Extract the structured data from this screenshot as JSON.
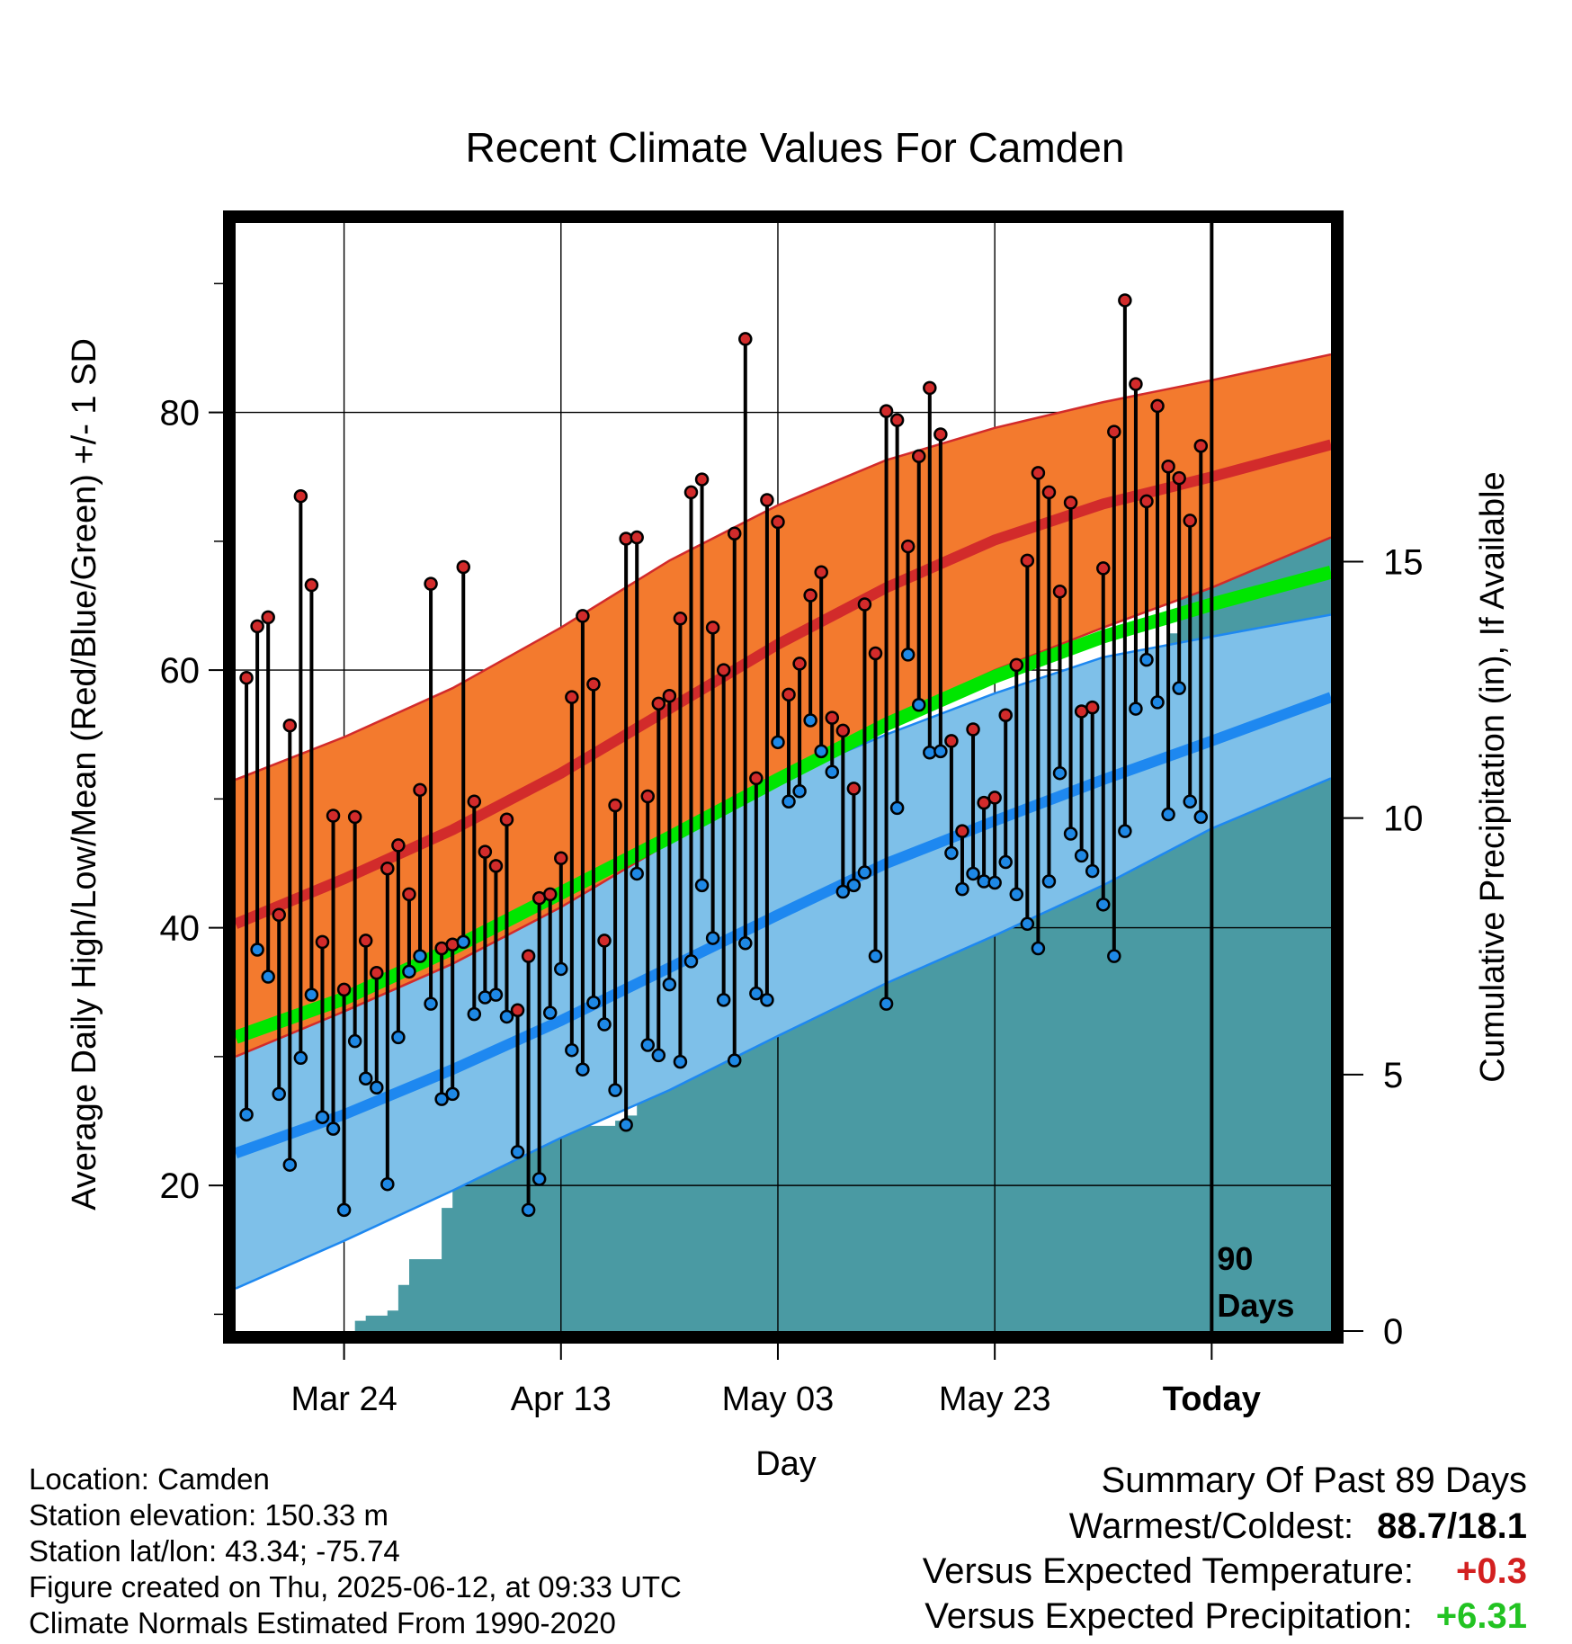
{
  "chart_data": {
    "type": "line",
    "title": "Recent Climate Values For Camden",
    "xlabel": "Day",
    "ylabel": "Average Daily High/Low/Mean (Red/Blue/Green) +/- 1 SD",
    "y2label": "Cumulative Precipitation (in), If Available",
    "x_tick_labels": [
      "Mar 24",
      "Apr 13",
      "May 03",
      "May 23",
      "Today"
    ],
    "y_ticks": [
      20,
      40,
      60,
      80
    ],
    "y2_ticks": [
      0,
      5,
      10,
      15
    ],
    "ylim": [
      8.7,
      94.7
    ],
    "y2lim": [
      0,
      21.6
    ],
    "x_range_days": [
      0,
      101
    ],
    "tick_days": [
      10,
      30,
      50,
      70,
      90
    ],
    "today_day": 90,
    "today_label": "90\nDays",
    "grid": true,
    "normals": {
      "days": [
        0,
        10,
        20,
        30,
        40,
        50,
        60,
        70,
        80,
        90,
        101
      ],
      "high": [
        40.3,
        43.8,
        47.6,
        52.0,
        57.0,
        62.0,
        66.4,
        70.1,
        72.9,
        75.0,
        77.5
      ],
      "high_upper": [
        51.5,
        54.8,
        58.6,
        63.3,
        68.5,
        72.8,
        76.3,
        78.8,
        80.8,
        82.5,
        84.5
      ],
      "high_lower": [
        30.0,
        33.5,
        37.2,
        41.6,
        46.6,
        51.6,
        56.1,
        60.0,
        63.3,
        66.4,
        70.3
      ],
      "mean": [
        31.5,
        34.5,
        38.4,
        42.7,
        47.0,
        51.5,
        55.8,
        59.5,
        62.6,
        65.1,
        67.6
      ],
      "low": [
        22.5,
        25.5,
        29.0,
        32.8,
        36.9,
        41.0,
        45.0,
        48.3,
        51.5,
        54.5,
        57.9
      ],
      "low_upper": [
        33.0,
        35.8,
        39.2,
        43.1,
        47.4,
        51.5,
        55.0,
        58.2,
        61.0,
        62.6,
        64.3
      ],
      "low_lower": [
        12.0,
        15.7,
        19.6,
        23.7,
        27.4,
        31.6,
        35.7,
        39.4,
        43.3,
        47.7,
        51.6
      ]
    },
    "daily": {
      "high": [
        59.4,
        63.4,
        64.1,
        41.0,
        55.7,
        73.5,
        66.6,
        38.9,
        48.7,
        35.2,
        48.6,
        39.0,
        36.5,
        44.6,
        46.4,
        42.6,
        50.7,
        66.7,
        38.4,
        38.7,
        68.0,
        49.8,
        45.9,
        44.8,
        48.4,
        33.6,
        37.8,
        42.3,
        42.6,
        45.4,
        57.9,
        64.2,
        58.9,
        39.0,
        49.5,
        70.2,
        70.3,
        50.2,
        57.4,
        58.0,
        64.0,
        73.8,
        74.8,
        63.3,
        60.0,
        70.6,
        85.7,
        51.6,
        73.2,
        71.5,
        58.1,
        60.5,
        65.8,
        67.6,
        56.3,
        55.3,
        50.8,
        65.1,
        61.3,
        80.1,
        79.4,
        69.6,
        76.6,
        81.9,
        78.3,
        54.5,
        47.5,
        55.4,
        49.7,
        50.1,
        56.5,
        60.4,
        68.5,
        75.3,
        73.8,
        66.1,
        73.0,
        56.8,
        57.1,
        67.9,
        78.5,
        88.7,
        82.2,
        73.1,
        80.5,
        75.8,
        74.9,
        71.6,
        77.4
      ],
      "low": [
        25.5,
        38.3,
        36.2,
        27.1,
        21.6,
        29.9,
        34.8,
        25.3,
        24.4,
        18.1,
        31.2,
        28.3,
        27.6,
        20.1,
        31.5,
        36.6,
        37.8,
        34.1,
        26.7,
        27.1,
        38.9,
        33.3,
        34.6,
        34.8,
        33.1,
        22.6,
        18.1,
        20.5,
        33.4,
        36.8,
        30.5,
        29.0,
        34.2,
        32.5,
        27.4,
        24.7,
        44.2,
        30.9,
        30.1,
        35.6,
        29.6,
        37.4,
        43.3,
        39.2,
        34.4,
        29.7,
        38.8,
        34.9,
        34.4,
        54.4,
        49.8,
        50.6,
        56.1,
        53.7,
        52.1,
        42.8,
        43.3,
        44.3,
        37.8,
        34.1,
        49.3,
        61.2,
        57.3,
        53.6,
        53.7,
        45.8,
        43.0,
        44.2,
        43.6,
        43.5,
        45.1,
        42.6,
        40.3,
        38.4,
        43.6,
        52.0,
        47.3,
        45.6,
        44.4,
        41.8,
        37.8,
        47.5,
        57.0,
        60.8,
        57.5,
        48.8,
        58.6,
        49.8,
        48.6
      ]
    },
    "precipitation": {
      "days": [
        0,
        10,
        11,
        12,
        13,
        14,
        15,
        16,
        17,
        18,
        19,
        20,
        21,
        22,
        23,
        24,
        25,
        26,
        27,
        28,
        29,
        30,
        31,
        32,
        33,
        34,
        35,
        36,
        37,
        38,
        39,
        40,
        41,
        42,
        43,
        44,
        45,
        46,
        47,
        48,
        49,
        50,
        51,
        52,
        53,
        54,
        55,
        56,
        57,
        58,
        59,
        60,
        61,
        62,
        63,
        64,
        65,
        66,
        67,
        68,
        69,
        70,
        71,
        72,
        73,
        74,
        75,
        76,
        77,
        78,
        79,
        80,
        81,
        82,
        83,
        84,
        85,
        86,
        87,
        88,
        89,
        90,
        101
      ],
      "cumulative_in": [
        0,
        0,
        0.2,
        0.3,
        0.3,
        0.4,
        0.9,
        1.4,
        1.4,
        1.4,
        2.4,
        3.0,
        3.0,
        3.3,
        3.4,
        3.5,
        3.5,
        3.6,
        3.7,
        3.9,
        4.0,
        4.0,
        4.0,
        4.0,
        4.0,
        4.0,
        4.1,
        4.2,
        4.9,
        5.0,
        5.0,
        5.0,
        5.0,
        5.1,
        5.6,
        5.7,
        5.7,
        6.0,
        6.1,
        6.1,
        6.2,
        6.4,
        7.0,
        7.2,
        8.3,
        9.9,
        10.1,
        10.1,
        10.3,
        10.3,
        10.3,
        10.3,
        10.3,
        10.3,
        10.5,
        11.0,
        11.0,
        11.3,
        11.3,
        11.3,
        11.3,
        11.5,
        11.6,
        11.7,
        11.9,
        11.9,
        12.0,
        12.0,
        12.1,
        12.2,
        12.3,
        12.3,
        12.3,
        12.3,
        12.4,
        12.9,
        13.2,
        13.6,
        14.3,
        14.5,
        14.5,
        16.3,
        16.3
      ]
    },
    "colors": {
      "high_band": "#f37a2e",
      "high_line": "#d22b2b",
      "high_edge": "#d22b2b",
      "low_band": "#7ec0e9",
      "low_line": "#1e88f0",
      "low_edge": "#1e88f0",
      "mean_line": "#00e600",
      "precip_fill": "#4a9aa3",
      "high_marker": "#d22b2b",
      "low_marker": "#1e88e5"
    }
  },
  "meta": {
    "location": "Location: Camden",
    "elevation": "Station elevation: 150.33 m",
    "latlon": "Station lat/lon: 43.34; -75.74",
    "created": "Figure created on Thu, 2025-06-12, at 09:33 UTC",
    "normals": "Climate Normals Estimated From 1990-2020"
  },
  "summary": {
    "title": "Summary Of Past 89 Days",
    "warm_cold_label": "Warmest/Coldest:",
    "warm_cold_value": "88.7/18.1",
    "temp_label": "Versus Expected Temperature:",
    "temp_value": "+0.3",
    "temp_color": "#d32020",
    "precip_label": "Versus Expected Precipitation:",
    "precip_value": "+6.31",
    "precip_color": "#22c322"
  }
}
